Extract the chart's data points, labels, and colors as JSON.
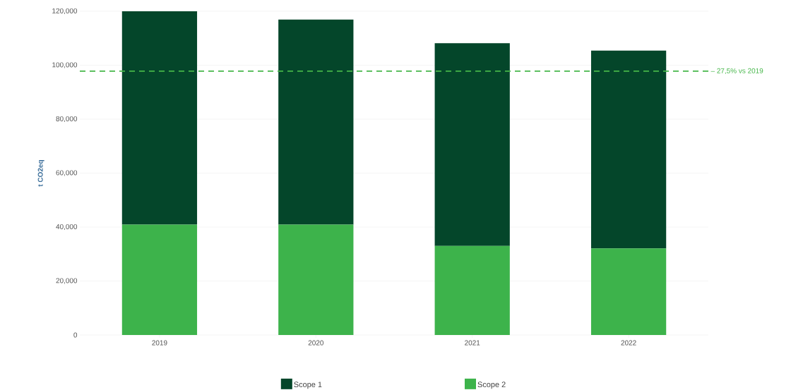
{
  "chart_data": {
    "type": "bar",
    "stacked": true,
    "ylabel": "t CO2eq",
    "categories": [
      "2019",
      "2020",
      "2021",
      "2022"
    ],
    "series": [
      {
        "name": "Scope 2",
        "color": "#3db34b",
        "values": [
          40900,
          40900,
          33000,
          32100
        ]
      },
      {
        "name": "Scope 1",
        "color": "#04462a",
        "values": [
          79100,
          76000,
          75200,
          73300
        ]
      }
    ],
    "ylim": [
      0,
      120000
    ],
    "yticks": [
      0,
      {
        "value": 20000,
        "label": "20,000"
      },
      {
        "value": 40000,
        "label": "40,000"
      },
      {
        "value": 60000,
        "label": "60,000"
      },
      {
        "value": 80000,
        "label": "80,000"
      },
      {
        "value": 100000,
        "label": "100,000"
      },
      {
        "value": 120000,
        "label": "120,000"
      }
    ],
    "ref_lines": [
      {
        "axis": "y",
        "value": 97800,
        "label": "– 27,5% vs 2019",
        "color": "#45b649",
        "line_style": "dashed"
      }
    ],
    "grid": "y",
    "legend": "bottom"
  }
}
